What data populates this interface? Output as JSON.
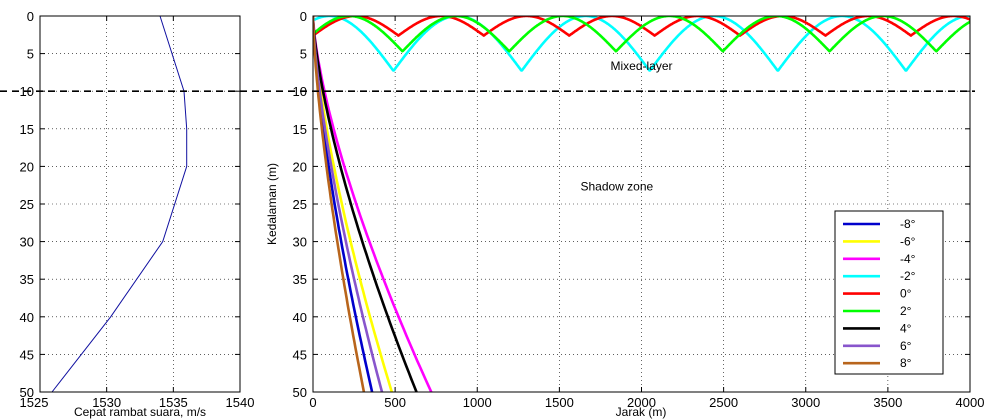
{
  "chart_data": [
    {
      "type": "line",
      "name": "sound-speed-profile",
      "xlabel": "Cepat rambat suara, m/s",
      "ylabel": "",
      "xlim": [
        1525,
        1540
      ],
      "ylim": [
        0,
        50
      ],
      "y_inverted": true,
      "x_ticks": [
        1525,
        1530,
        1535,
        1540
      ],
      "y_ticks": [
        0,
        5,
        10,
        15,
        20,
        25,
        30,
        35,
        40,
        45,
        50
      ],
      "grid": true,
      "color": "#1010a0",
      "series": [
        {
          "x": [
            1534.0,
            1535.8,
            1536.0,
            1536.0,
            1534.2,
            1530.3,
            1525.9
          ],
          "y": [
            0,
            10,
            15,
            20,
            30,
            40,
            50
          ]
        }
      ]
    },
    {
      "type": "line",
      "name": "ray-trace",
      "xlabel": "Jarak (m)",
      "ylabel": "Kedalaman (m)",
      "xlim": [
        0,
        4000
      ],
      "ylim": [
        0,
        50
      ],
      "y_inverted": true,
      "x_ticks": [
        0,
        500,
        1000,
        1500,
        2000,
        2500,
        3000,
        3500,
        4000
      ],
      "y_ticks": [
        0,
        5,
        10,
        15,
        20,
        25,
        30,
        35,
        40,
        45,
        50
      ],
      "grid": true,
      "legend_position": "right",
      "annotations": [
        {
          "text": "Mixed-layer",
          "x": 2000,
          "y": 7.2
        },
        {
          "text": "Shadow zone",
          "x": 1850,
          "y": 23.2
        }
      ],
      "reference_line": {
        "y": 10,
        "style": "dashed",
        "color": "#000000"
      },
      "rays": [
        {
          "name": "-8°",
          "color": "#0000cc",
          "kind": "escape",
          "end_x": 360
        },
        {
          "name": "-6°",
          "color": "#ffff00",
          "kind": "escape",
          "end_x": 480
        },
        {
          "name": "-4°",
          "color": "#ff00ff",
          "kind": "escape",
          "end_x": 720
        },
        {
          "name": "-2°",
          "color": "#00ffff",
          "kind": "trapped",
          "max_depth": 7.3,
          "period": 780,
          "first_bottom": 100
        },
        {
          "name": "0°",
          "color": "#ff0000",
          "kind": "trapped",
          "max_depth": 2.6,
          "period": 520,
          "first_bottom": 260
        },
        {
          "name": "2°",
          "color": "#00ff00",
          "kind": "trapped",
          "max_depth": 4.7,
          "period": 650,
          "first_bottom": 220
        },
        {
          "name": "4°",
          "color": "#000000",
          "kind": "escape",
          "end_x": 630
        },
        {
          "name": "6°",
          "color": "#8855cc",
          "kind": "escape",
          "end_x": 420
        },
        {
          "name": "8°",
          "color": "#b8651c",
          "kind": "escape",
          "end_x": 310
        }
      ]
    }
  ]
}
